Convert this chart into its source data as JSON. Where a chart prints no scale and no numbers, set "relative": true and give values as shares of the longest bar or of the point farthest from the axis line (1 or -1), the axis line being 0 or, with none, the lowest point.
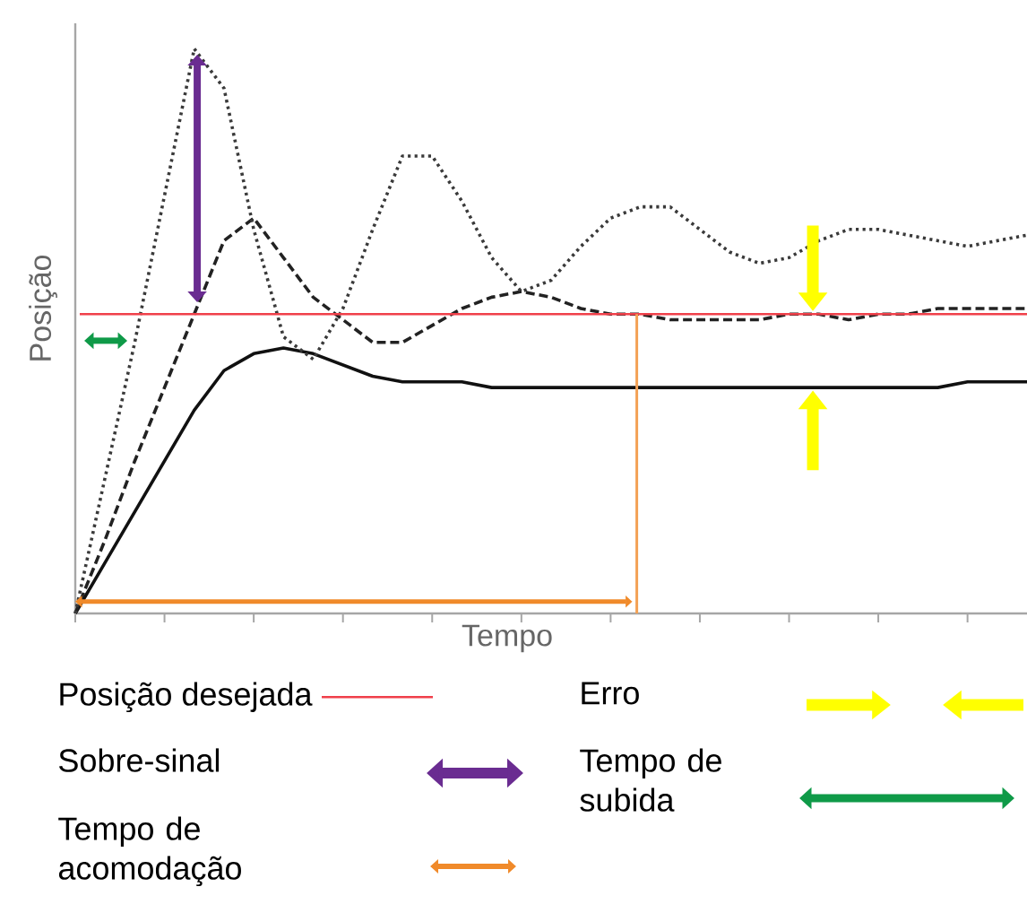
{
  "chart_data": {
    "type": "line",
    "relative": true,
    "xlabel": "Tempo",
    "ylabel": "Posição",
    "tick_labels": false,
    "categories": [
      null,
      null,
      null,
      null,
      null,
      null,
      null,
      null,
      null,
      null,
      null,
      null,
      null,
      null,
      null,
      null,
      null,
      null,
      null,
      null,
      null,
      null,
      null,
      null,
      null,
      null,
      null,
      null,
      null,
      null,
      null,
      null,
      null
    ],
    "series": [
      {
        "color": "#111111",
        "line_style": "solid",
        "values": [
          0,
          0.09,
          0.18,
          0.27,
          0.36,
          0.43,
          0.46,
          0.47,
          0.46,
          0.44,
          0.42,
          0.41,
          0.41,
          0.41,
          0.4,
          0.4,
          0.4,
          0.4,
          0.4,
          0.4,
          0.4,
          0.4,
          0.4,
          0.4,
          0.4,
          0.4,
          0.4,
          0.4,
          0.4,
          0.4,
          0.41,
          0.41,
          0.41
        ]
      },
      {
        "color": "#222222",
        "line_style": "dashed",
        "values": [
          0,
          0.13,
          0.27,
          0.4,
          0.53,
          0.66,
          0.7,
          0.63,
          0.56,
          0.52,
          0.48,
          0.48,
          0.51,
          0.54,
          0.56,
          0.57,
          0.56,
          0.54,
          0.53,
          0.53,
          0.52,
          0.52,
          0.52,
          0.52,
          0.53,
          0.53,
          0.52,
          0.53,
          0.53,
          0.54,
          0.54,
          0.54,
          0.54
        ]
      },
      {
        "color": "#3a3a3a",
        "line_style": "dotted",
        "values": [
          0,
          0.24,
          0.48,
          0.74,
          1,
          0.93,
          0.68,
          0.49,
          0.45,
          0.54,
          0.68,
          0.81,
          0.81,
          0.73,
          0.63,
          0.57,
          0.59,
          0.65,
          0.7,
          0.72,
          0.72,
          0.68,
          0.64,
          0.62,
          0.63,
          0.66,
          0.68,
          0.68,
          0.67,
          0.66,
          0.65,
          0.66,
          0.67
        ]
      }
    ],
    "ref_lines": [
      {
        "axis": "y",
        "value": 0.53,
        "label": "Posição desejada",
        "color": "#f0404a"
      }
    ],
    "annotations": [
      "Erro",
      "Sobre-sinal",
      "Tempo de subida",
      "Tempo de acomodação"
    ]
  }
}
